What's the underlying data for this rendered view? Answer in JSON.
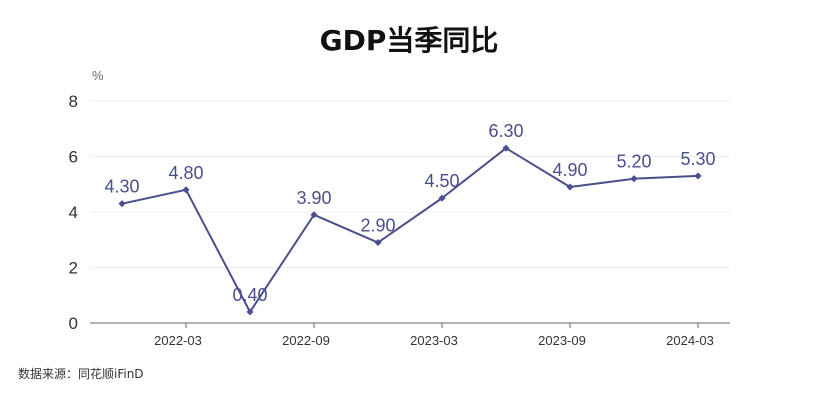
{
  "chart_data": {
    "type": "line",
    "title": "GDP当季同比",
    "unit_label": "%",
    "x": [
      "2021-12",
      "2022-03",
      "2022-06",
      "2022-09",
      "2022-12",
      "2023-03",
      "2023-06",
      "2023-09",
      "2023-12",
      "2024-03"
    ],
    "x_tick_labels": [
      "2022-03",
      "2022-09",
      "2023-03",
      "2023-09",
      "2024-03"
    ],
    "x_tick_values": [
      "2022-03",
      "2022-09",
      "2023-03",
      "2023-09",
      "2024-03"
    ],
    "series": [
      {
        "values": [
          4.3,
          4.8,
          0.4,
          3.9,
          2.9,
          4.5,
          6.3,
          4.9,
          5.2,
          5.3
        ],
        "data_labels": [
          "4.30",
          "4.80",
          "0.40",
          "3.90",
          "2.90",
          "4.50",
          "6.30",
          "4.90",
          "5.20",
          "5.30"
        ],
        "color": "#4a4f8c"
      }
    ],
    "ylim": [
      0,
      8
    ],
    "y_ticks": [
      0,
      2,
      4,
      6,
      8
    ],
    "y_tick_labels": [
      "0",
      "2",
      "4",
      "6",
      "8"
    ],
    "grid": true
  },
  "source_text": "数据来源：同花顺iFinD"
}
